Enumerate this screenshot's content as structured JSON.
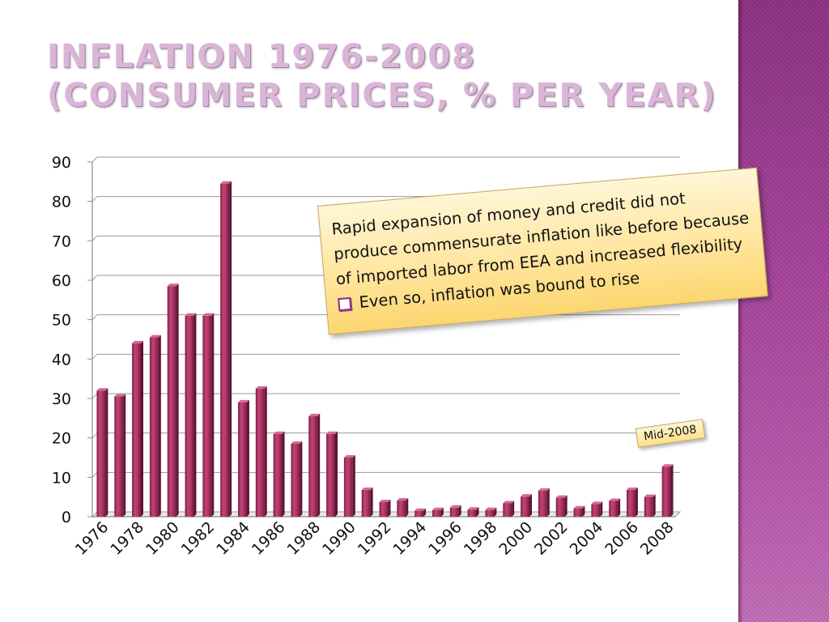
{
  "slide": {
    "title_line1": "INFLATION 1976-2008",
    "title_line2": "(CONSUMER PRICES, % PER YEAR)",
    "accent_color": "#a23f97",
    "bar_color": "#a8305e"
  },
  "callout": {
    "text": "Rapid expansion of money and credit did not produce commensurate inflation like before because of imported labor from EEA and increased flexibility",
    "bullet": "Even so, inflation was bound to rise",
    "bullet_icon": "checkbox-square-icon"
  },
  "annotation": {
    "label": "Mid-2008"
  },
  "chart_data": {
    "type": "bar",
    "title": "",
    "xlabel": "",
    "ylabel": "",
    "ylim": [
      0,
      90
    ],
    "yticks": [
      0,
      10,
      20,
      30,
      40,
      50,
      60,
      70,
      80,
      90
    ],
    "grid": true,
    "categories": [
      "1976",
      "1977",
      "1978",
      "1979",
      "1980",
      "1981",
      "1982",
      "1983",
      "1984",
      "1985",
      "1986",
      "1987",
      "1988",
      "1989",
      "1990",
      "1991",
      "1992",
      "1993",
      "1994",
      "1995",
      "1996",
      "1997",
      "1998",
      "1999",
      "2000",
      "2001",
      "2002",
      "2003",
      "2004",
      "2005",
      "2006",
      "2007",
      "2008"
    ],
    "tick_labels": [
      "1976",
      "1978",
      "1980",
      "1982",
      "1984",
      "1986",
      "1988",
      "1990",
      "1992",
      "1994",
      "1996",
      "1998",
      "2000",
      "2002",
      "2004",
      "2006",
      "2008"
    ],
    "values": [
      32,
      30.5,
      44,
      45.5,
      58.5,
      51,
      51,
      84.5,
      29,
      32.5,
      21,
      18.5,
      25.5,
      21,
      15,
      6.8,
      3.7,
      4.1,
      1.5,
      1.7,
      2.3,
      1.8,
      1.7,
      3.4,
      5.1,
      6.6,
      4.8,
      2.1,
      3.2,
      4.0,
      6.8,
      5.0,
      12.7
    ]
  }
}
